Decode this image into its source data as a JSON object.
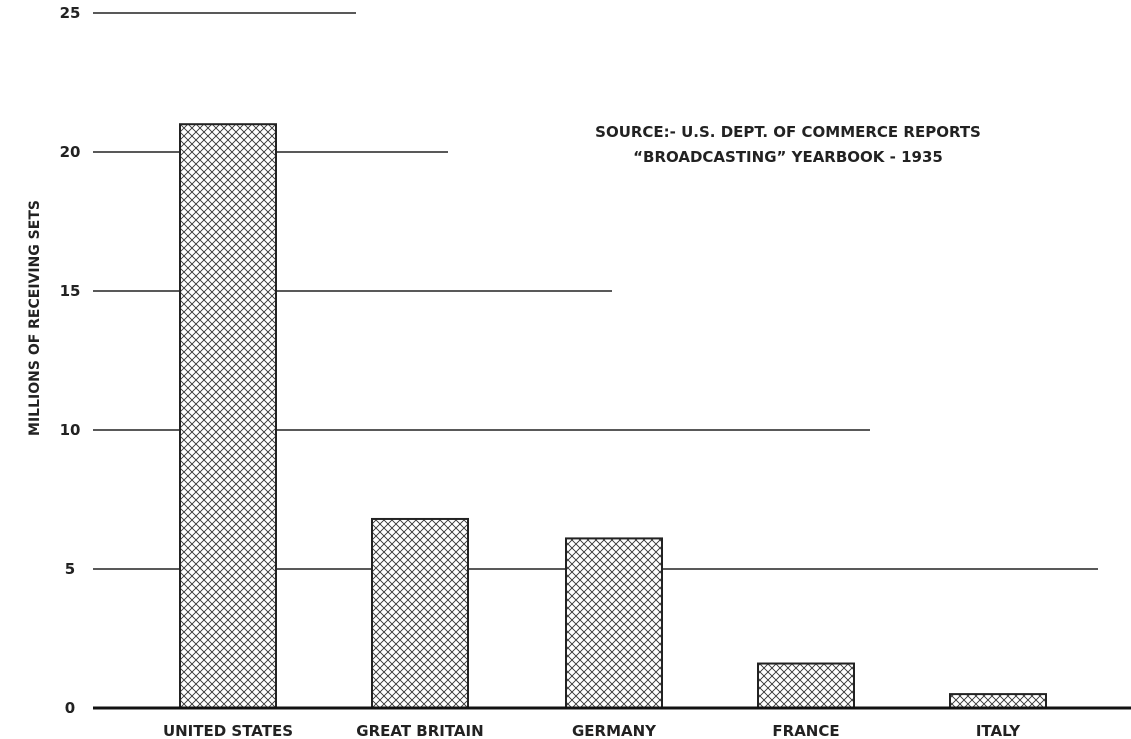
{
  "chart_data": {
    "type": "bar",
    "categories": [
      "UNITED STATES",
      "GREAT BRITAIN",
      "GERMANY",
      "FRANCE",
      "ITALY"
    ],
    "values": [
      21,
      6.8,
      6.1,
      1.6,
      0.5
    ],
    "ylabel": "MILLIONS OF RECEIVING SETS",
    "xlabel": "",
    "ylim": [
      0,
      25
    ],
    "yticks": [
      "0",
      "5",
      "10",
      "15",
      "20",
      "25"
    ],
    "annotation": {
      "line1": "SOURCE:- U.S. DEPT. OF COMMERCE REPORTS",
      "line2": "“BROADCASTING” YEARBOOK - 1935"
    },
    "bar_fill": "crosshatch",
    "grid": true
  }
}
